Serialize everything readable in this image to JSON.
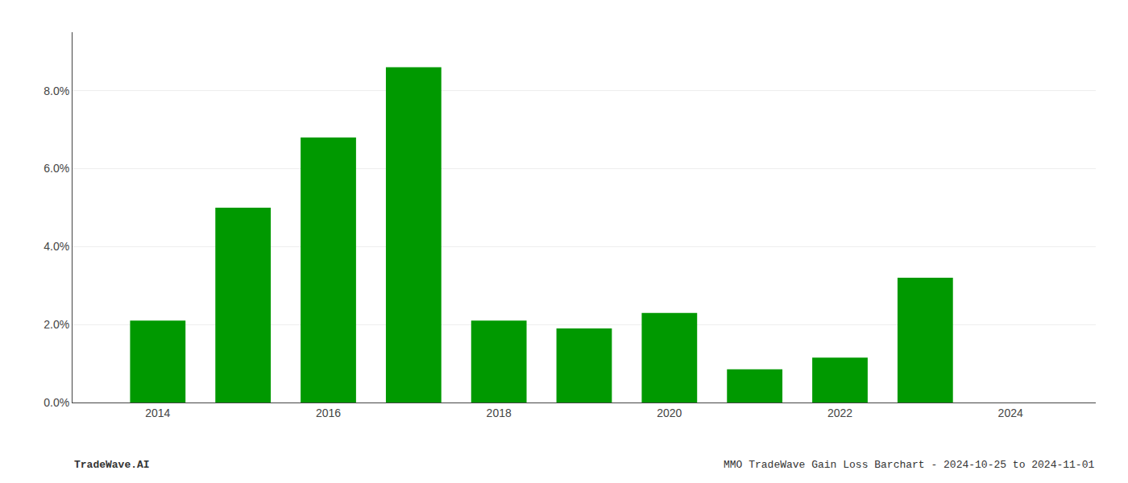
{
  "chart_data": {
    "type": "bar",
    "x": [
      2014,
      2015,
      2016,
      2017,
      2018,
      2019,
      2020,
      2021,
      2022,
      2023
    ],
    "values": [
      0.021,
      0.05,
      0.068,
      0.086,
      0.021,
      0.019,
      0.023,
      0.0085,
      0.0115,
      0.032
    ],
    "color": "#009900",
    "xlim": [
      2013.0,
      2025.0
    ],
    "xticks": [
      2014,
      2016,
      2018,
      2020,
      2022,
      2024
    ],
    "ylim": [
      0,
      0.095
    ],
    "yticks": [
      {
        "value": 0.0,
        "label": "0.0%"
      },
      {
        "value": 0.02,
        "label": "2.0%"
      },
      {
        "value": 0.04,
        "label": "4.0%"
      },
      {
        "value": 0.06,
        "label": "6.0%"
      },
      {
        "value": 0.08,
        "label": "8.0%"
      }
    ],
    "grid": true,
    "annotations": [
      "TradeWave.AI",
      "MMO TradeWave Gain Loss Barchart - 2024-10-25 to 2024-11-01"
    ]
  }
}
